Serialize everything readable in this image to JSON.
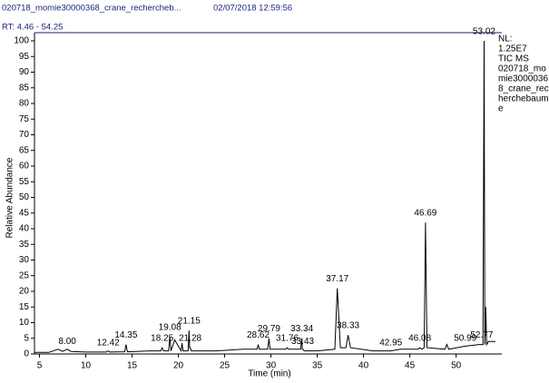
{
  "chart_data": {
    "type": "line",
    "file_name": "020718_momie30000368_crane_rechercheb...",
    "timestamp": "02/07/2018 12:59:56",
    "title": "RT: 4.46 - 54.25",
    "x_label": "Time (min)",
    "y_label": "Relative Abundance",
    "side_note": [
      "NL:",
      "1.25E7",
      "TIC  MS",
      "020718_mo",
      "mie3000036",
      "8_crane_rec",
      "herchebaume",
      "e"
    ],
    "xlim": [
      4.46,
      54.25
    ],
    "ylim": [
      0,
      100
    ],
    "xticks": [
      5,
      10,
      15,
      20,
      25,
      30,
      35,
      40,
      45,
      50
    ],
    "yticks": [
      0,
      5,
      10,
      15,
      20,
      25,
      30,
      35,
      40,
      45,
      50,
      55,
      60,
      65,
      70,
      75,
      80,
      85,
      90,
      95,
      100
    ],
    "series": [
      {
        "name": "TIC",
        "color": "#000000",
        "x": [
          4.46,
          6,
          7,
          7.5,
          8.0,
          8.4,
          10,
          12.2,
          12.42,
          12.6,
          14.2,
          14.35,
          14.5,
          17,
          18.1,
          18.25,
          18.4,
          18.95,
          19.08,
          19.2,
          19.6,
          20.3,
          20.4,
          20.5,
          21.05,
          21.15,
          21.22,
          21.28,
          21.4,
          24,
          27,
          28.5,
          28.62,
          28.75,
          29.65,
          29.79,
          29.9,
          31.6,
          31.76,
          31.9,
          33.2,
          33.34,
          33.38,
          33.43,
          33.6,
          35,
          36.9,
          37.17,
          37.5,
          38.1,
          38.33,
          38.6,
          41,
          42.95,
          44,
          45.9,
          46.08,
          46.3,
          46.55,
          46.69,
          46.85,
          48.8,
          49.0,
          49.2,
          50.99,
          52.5,
          52.77,
          52.9,
          53.02,
          53.1,
          53.2,
          53.3,
          53.5,
          54.25
        ],
        "values": [
          0.5,
          0.5,
          1.5,
          0.8,
          1.5,
          0.8,
          0.6,
          0.6,
          1,
          0.6,
          0.7,
          3,
          0.7,
          1,
          1,
          2,
          1,
          1,
          5.5,
          1,
          4.5,
          1,
          3.5,
          1,
          1,
          7.5,
          2,
          2,
          1,
          1,
          1.5,
          1.5,
          3,
          1.5,
          1.5,
          5,
          1.5,
          1.5,
          2,
          1.5,
          1.5,
          5,
          1.5,
          1.5,
          1,
          1,
          1.5,
          21,
          2,
          2,
          6,
          2,
          1,
          1,
          1.5,
          1.5,
          2,
          1.5,
          2,
          42,
          2,
          1.5,
          3,
          1.5,
          2.5,
          3,
          3,
          3,
          100,
          3,
          15,
          3,
          4,
          4
        ]
      }
    ],
    "peak_labels": [
      {
        "value": 8.0,
        "label": "8.00",
        "y": 4
      },
      {
        "value": 12.42,
        "label": "12.42",
        "y": 3.5
      },
      {
        "value": 14.35,
        "label": "14.35",
        "y": 6
      },
      {
        "value": 18.25,
        "label": "18.25",
        "y": 5
      },
      {
        "value": 19.08,
        "label": "19.08",
        "y": 8.5
      },
      {
        "value": 21.15,
        "label": "21.15",
        "y": 10.5
      },
      {
        "value": 21.28,
        "label": "21.28",
        "y": 5
      },
      {
        "value": 28.62,
        "label": "28.62",
        "y": 6
      },
      {
        "value": 29.79,
        "label": "29.79",
        "y": 8
      },
      {
        "value": 31.76,
        "label": "31.76",
        "y": 5
      },
      {
        "value": 33.34,
        "label": "33.34",
        "y": 8
      },
      {
        "value": 33.43,
        "label": "33.43",
        "y": 4
      },
      {
        "value": 37.17,
        "label": "37.17",
        "y": 24
      },
      {
        "value": 38.33,
        "label": "38.33",
        "y": 9
      },
      {
        "value": 42.95,
        "label": "42.95",
        "y": 3.5
      },
      {
        "value": 46.08,
        "label": "46.08",
        "y": 5
      },
      {
        "value": 46.69,
        "label": "46.69",
        "y": 45
      },
      {
        "value": 50.99,
        "label": "50.99",
        "y": 5
      },
      {
        "value": 52.77,
        "label": "52.77",
        "y": 6
      },
      {
        "value": 53.02,
        "label": "53.02",
        "y": 103
      }
    ]
  }
}
